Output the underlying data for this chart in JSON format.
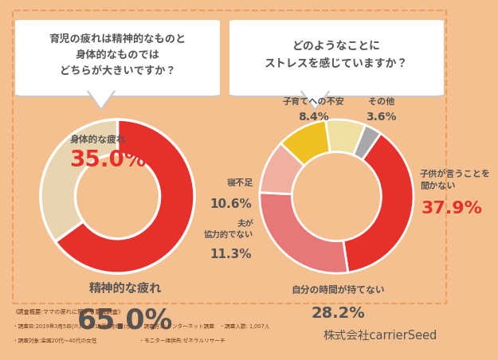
{
  "bg_color": "#F5C090",
  "inner_bg_color": "#FAE8D5",
  "border_color": "#E8A060",
  "chart1_title": "育児の疲れは精神的なものと\n身体的なものでは\nどちらが大きいですか？",
  "chart2_title": "どのようなことに\nストレスを感じていますか？",
  "chart1_values": [
    65.0,
    35.0
  ],
  "chart1_colors": [
    "#E8302A",
    "#E8D5B0"
  ],
  "chart1_label1": "精神的な疲れ",
  "chart1_pct1": "65.0%",
  "chart1_label2": "身体的な疲れ",
  "chart1_pct2": "35.0%",
  "chart2_values": [
    37.9,
    28.2,
    11.3,
    10.6,
    8.4,
    3.6
  ],
  "chart2_colors": [
    "#E8302A",
    "#E87878",
    "#F0B0A0",
    "#F0C020",
    "#F0E0A0",
    "#A8A8A8"
  ],
  "chart2_label1": "子供が言うことを\n聞かない",
  "chart2_pct1": "37.9%",
  "chart2_label2": "自分の時間が持てない",
  "chart2_pct2": "28.2%",
  "chart2_label3": "夫が\n協力的でない",
  "chart2_pct3": "11.3%",
  "chart2_label4": "寝不足",
  "chart2_pct4": "10.6%",
  "chart2_label5": "子育てへの不安",
  "chart2_pct5": "8.4%",
  "chart2_label6": "その他",
  "chart2_pct6": "3.6%",
  "footer_left1": "《調査概要:ママの疲れに関する意識調査》",
  "footer_left2": "・調査日:2019年3月5日(火)～ 2019年3月6日(水)　・調査方法:インターネット調査　・調査人数: 1,007人",
  "footer_left3": "・調査対象:全国20代～40代の女性　　　　　　　　・モニター提供先:ゼネラルリサーチ",
  "footer_right": "株式会社carrierSeed",
  "dark_color": "#555555",
  "red_color": "#E8302A",
  "title_color": "#555555",
  "label_color": "#555555",
  "bubble_edge": "#C8C8C8",
  "bubble_bg": "#FFFFFF"
}
